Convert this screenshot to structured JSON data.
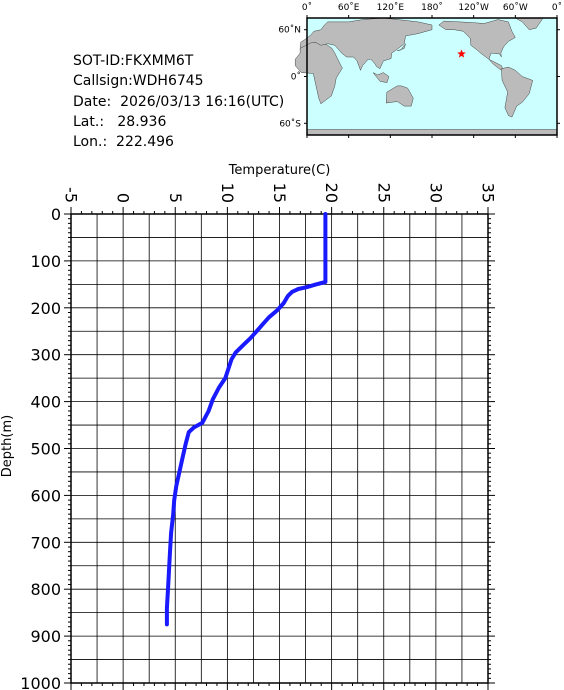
{
  "info": {
    "sot_id": "SOT-ID:FKXMM6T",
    "callsign": "Callsign:WDH6745",
    "date": "Date:  2026/03/13 16:16(UTC)",
    "lat": "Lat.:   28.936",
    "lon": "Lon.:  222.496"
  },
  "map": {
    "lon_labels": [
      "0˚",
      "60˚E",
      "120˚E",
      "180˚",
      "120˚W",
      "60˚W",
      "0˚"
    ],
    "lat_labels": [
      "60˚N",
      "0˚",
      "60˚S"
    ],
    "marker": {
      "lat": 28.936,
      "lon": 222.496
    },
    "ocean_color": "#ccffff",
    "land_color": "#bbbbbb",
    "marker_color": "#ff0000",
    "marker_icon": "star-icon"
  },
  "chart_data": {
    "type": "line",
    "xlabel": "Temperature(C)",
    "ylabel": "Depth(m)",
    "xlim": [
      -5,
      35
    ],
    "ylim": [
      1000,
      0
    ],
    "x_ticks": [
      "-5",
      "0",
      "5",
      "10",
      "15",
      "20",
      "25",
      "30",
      "35"
    ],
    "y_ticks": [
      "0",
      "100",
      "200",
      "300",
      "400",
      "500",
      "600",
      "700",
      "800",
      "900",
      "1000"
    ],
    "grid": true,
    "line_color": "#1a1aff",
    "series": [
      {
        "points": [
          [
            19.4,
            0
          ],
          [
            19.4,
            50
          ],
          [
            19.4,
            100
          ],
          [
            19.4,
            145
          ],
          [
            18.5,
            150
          ],
          [
            17.6,
            156
          ],
          [
            16.8,
            160
          ],
          [
            16.2,
            166
          ],
          [
            15.8,
            175
          ],
          [
            15.4,
            190
          ],
          [
            14.8,
            205
          ],
          [
            14.0,
            220
          ],
          [
            13.4,
            235
          ],
          [
            12.8,
            250
          ],
          [
            12.2,
            265
          ],
          [
            11.5,
            280
          ],
          [
            10.8,
            295
          ],
          [
            10.4,
            310
          ],
          [
            10.1,
            330
          ],
          [
            9.8,
            350
          ],
          [
            9.2,
            370
          ],
          [
            8.6,
            395
          ],
          [
            8.2,
            420
          ],
          [
            7.6,
            445
          ],
          [
            6.8,
            455
          ],
          [
            6.3,
            465
          ],
          [
            6.0,
            490
          ],
          [
            5.7,
            520
          ],
          [
            5.4,
            550
          ],
          [
            5.1,
            580
          ],
          [
            4.9,
            610
          ],
          [
            4.8,
            640
          ],
          [
            4.6,
            680
          ],
          [
            4.5,
            720
          ],
          [
            4.4,
            760
          ],
          [
            4.3,
            800
          ],
          [
            4.2,
            840
          ],
          [
            4.2,
            875
          ]
        ]
      }
    ]
  }
}
